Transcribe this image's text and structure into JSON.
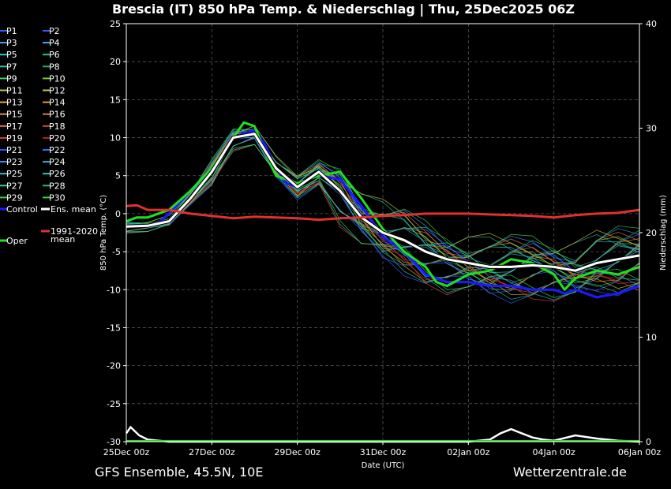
{
  "chart_data": {
    "type": "line",
    "title": "Brescia  (IT)  850 hPa Temp. & Niederschlag | Thu, 25Dec2025 06Z",
    "xlabel": "Date (UTC)",
    "ylabel": "850 hPa Temp. (°C)",
    "y2label": "Niederschlag (mm)",
    "footer_left": "GFS Ensemble, 45.5N, 10E",
    "footer_right": "Wetterzentrale.de",
    "xlim": [
      0,
      12
    ],
    "ylim": [
      -30,
      25
    ],
    "y2lim": [
      0,
      40
    ],
    "x_ticks": [
      {
        "x": 0,
        "label": "25Dec 00z"
      },
      {
        "x": 2,
        "label": "27Dec 00z"
      },
      {
        "x": 4,
        "label": "29Dec 00z"
      },
      {
        "x": 6,
        "label": "31Dec 00z"
      },
      {
        "x": 8,
        "label": "02Jan 00z"
      },
      {
        "x": 10,
        "label": "04Jan 00z"
      },
      {
        "x": 12,
        "label": "06Jan 00z"
      }
    ],
    "y_ticks": [
      25,
      20,
      15,
      10,
      5,
      0,
      -5,
      -10,
      -15,
      -20,
      -25,
      -30
    ],
    "y2_ticks": [
      40,
      30,
      20,
      10,
      0
    ],
    "grid": true,
    "legend": [
      {
        "label": "P1",
        "color": "#3a5fff"
      },
      {
        "label": "P2",
        "color": "#3a5fff"
      },
      {
        "label": "P3",
        "color": "#4fa0ff"
      },
      {
        "label": "P4",
        "color": "#3ab0e0"
      },
      {
        "label": "P5",
        "color": "#30c8d8"
      },
      {
        "label": "P6",
        "color": "#20c0a0"
      },
      {
        "label": "P7",
        "color": "#20c8a0"
      },
      {
        "label": "P8",
        "color": "#30b060"
      },
      {
        "label": "P9",
        "color": "#40d060"
      },
      {
        "label": "P10",
        "color": "#70d030"
      },
      {
        "label": "P11",
        "color": "#b0d040"
      },
      {
        "label": "P12",
        "color": "#d0c040"
      },
      {
        "label": "P13",
        "color": "#e0b030"
      },
      {
        "label": "P14",
        "color": "#e0a020"
      },
      {
        "label": "P15",
        "color": "#e09050"
      },
      {
        "label": "P16",
        "color": "#d08040"
      },
      {
        "label": "P17",
        "color": "#e07050"
      },
      {
        "label": "P18",
        "color": "#d05030"
      },
      {
        "label": "P19",
        "color": "#d04040"
      },
      {
        "label": "P20",
        "color": "#c02020"
      },
      {
        "label": "P21",
        "color": "#3050ff"
      },
      {
        "label": "P22",
        "color": "#3070ff"
      },
      {
        "label": "P23",
        "color": "#4090ff"
      },
      {
        "label": "P24",
        "color": "#40a8e0"
      },
      {
        "label": "P25",
        "color": "#30c0d0"
      },
      {
        "label": "P26",
        "color": "#30c8b0"
      },
      {
        "label": "P27",
        "color": "#30d0a0"
      },
      {
        "label": "P28",
        "color": "#30b870"
      },
      {
        "label": "P29",
        "color": "#40d040"
      },
      {
        "label": "P30",
        "color": "#30e030"
      },
      {
        "label": "Control",
        "color": "#1a1aff"
      },
      {
        "label": "Ens. mean",
        "color": "#ffffff"
      },
      {
        "label": "1991-2020 mean",
        "color": "#e03030"
      },
      {
        "label": "Oper",
        "color": "#20e020"
      }
    ],
    "series": [
      {
        "name": "Control",
        "color": "#1a1aff",
        "x": [
          0,
          0.5,
          0.75,
          1,
          1.5,
          2,
          2.5,
          3,
          3.25,
          3.5,
          3.75,
          4,
          4.25,
          4.5,
          5,
          5.5,
          6,
          6.5,
          7,
          7.5,
          8,
          8.5,
          9,
          9.5,
          10,
          10.25,
          10.5,
          11,
          11.5,
          12
        ],
        "y": [
          -1.8,
          -1.6,
          -1.2,
          0,
          3,
          6,
          10,
          11,
          9,
          6,
          4,
          3.5,
          4.5,
          5,
          4.5,
          1,
          -3,
          -5,
          -8,
          -9,
          -9,
          -9.5,
          -9.5,
          -10,
          -10,
          -10.5,
          -10,
          -11,
          -10.5,
          -9.5
        ]
      },
      {
        "name": "Oper",
        "color": "#20e020",
        "x": [
          0,
          0.25,
          0.5,
          1,
          1.5,
          2,
          2.5,
          2.75,
          3,
          3.25,
          3.5,
          4,
          4.5,
          5,
          5.5,
          6,
          6.5,
          7,
          7.25,
          7.5,
          8,
          8.5,
          9,
          9.5,
          10,
          10.25,
          10.5,
          11,
          11.5,
          12
        ],
        "y": [
          -1,
          -0.5,
          -0.5,
          0.5,
          3,
          6,
          10,
          12,
          11.5,
          8,
          5,
          4,
          5,
          5.5,
          2,
          -2,
          -5,
          -7,
          -9,
          -9.5,
          -8,
          -7.5,
          -6,
          -6.5,
          -8,
          -10,
          -8.5,
          -7.5,
          -8,
          -7
        ]
      },
      {
        "name": "Ens. mean",
        "color": "#ffffff",
        "x": [
          0,
          0.5,
          1,
          1.5,
          2,
          2.5,
          3,
          3.5,
          4,
          4.5,
          5,
          5.5,
          6,
          6.5,
          7,
          7.5,
          8,
          8.5,
          9,
          9.5,
          10,
          10.5,
          11,
          11.5,
          12
        ],
        "y": [
          -1.7,
          -1.6,
          -1,
          2,
          5.5,
          10,
          10.5,
          6,
          3.5,
          5.5,
          3,
          -0.5,
          -2.5,
          -3.5,
          -5,
          -6,
          -6.5,
          -7,
          -7,
          -6.8,
          -7,
          -7.5,
          -6.5,
          -6,
          -5.5
        ]
      },
      {
        "name": "1991-2020 mean",
        "color": "#e03030",
        "x": [
          0,
          0.25,
          0.5,
          1,
          1.5,
          2,
          2.5,
          3,
          3.5,
          4,
          4.5,
          5,
          5.5,
          6,
          6.5,
          7,
          7.5,
          8,
          8.5,
          9,
          9.5,
          10,
          10.5,
          11,
          11.5,
          12
        ],
        "y": [
          1,
          1.1,
          0.5,
          0.5,
          0,
          -0.3,
          -0.6,
          -0.4,
          -0.5,
          -0.6,
          -0.8,
          -0.6,
          -0.5,
          -0.3,
          -0.2,
          0,
          0,
          0,
          -0.1,
          -0.2,
          -0.3,
          -0.5,
          -0.2,
          0,
          0.1,
          0.5
        ]
      }
    ],
    "precip_ensmean": {
      "x": [
        0,
        0.1,
        0.3,
        0.5,
        1,
        2,
        3,
        4,
        5,
        6,
        7,
        8,
        8.5,
        8.75,
        9,
        9.25,
        9.5,
        9.75,
        10,
        10.5,
        11,
        11.5,
        12
      ],
      "y": [
        0.8,
        1.4,
        0.6,
        0.2,
        0,
        0,
        0,
        0,
        0,
        0,
        0,
        0,
        0.2,
        0.8,
        1.2,
        0.8,
        0.4,
        0.2,
        0.1,
        0.6,
        0.3,
        0.1,
        0
      ]
    }
  }
}
